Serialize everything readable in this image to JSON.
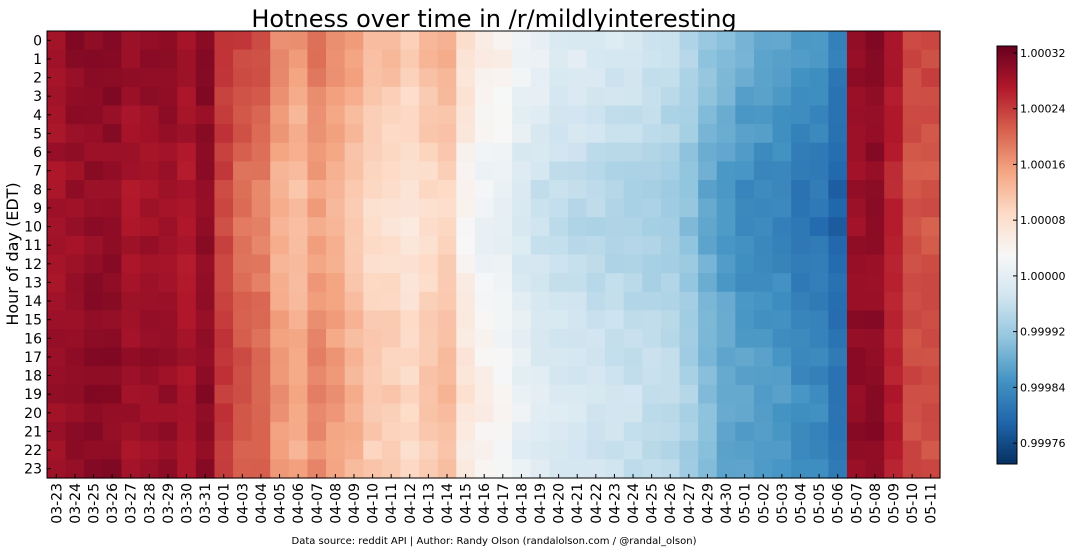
{
  "chart_data": {
    "type": "heatmap",
    "title": "Hotness over time in /r/mildlyinteresting",
    "ylabel": "Hour of day (EDT)",
    "xlabel": "",
    "caption": "Data source: reddit API | Author: Randy Olson (randalolson.com / @randal_olson)",
    "x": [
      "03-23",
      "03-24",
      "03-25",
      "03-26",
      "03-27",
      "03-28",
      "03-29",
      "03-30",
      "03-31",
      "04-01",
      "04-03",
      "04-04",
      "04-05",
      "04-06",
      "04-07",
      "04-08",
      "04-09",
      "04-10",
      "04-11",
      "04-12",
      "04-13",
      "04-14",
      "04-15",
      "04-16",
      "04-17",
      "04-18",
      "04-19",
      "04-20",
      "04-21",
      "04-22",
      "04-23",
      "04-24",
      "04-25",
      "04-26",
      "04-27",
      "04-29",
      "04-30",
      "05-01",
      "05-02",
      "05-03",
      "05-04",
      "05-05",
      "05-06",
      "05-07",
      "05-08",
      "05-09",
      "05-10",
      "05-11"
    ],
    "y": [
      "0",
      "1",
      "2",
      "3",
      "4",
      "5",
      "6",
      "7",
      "8",
      "9",
      "10",
      "11",
      "12",
      "13",
      "14",
      "15",
      "16",
      "17",
      "18",
      "19",
      "20",
      "21",
      "22",
      "23"
    ],
    "colorbar": {
      "min": 0.99973,
      "max": 1.00033,
      "ticks": [
        "0.99976",
        "0.99984",
        "0.99992",
        "1.00000",
        "1.00008",
        "1.00016",
        "1.00024",
        "1.00032"
      ],
      "colormap": "RdBu_r",
      "colors": [
        "#053061",
        "#2166ac",
        "#4393c3",
        "#92c5de",
        "#d1e5f0",
        "#f7f7f7",
        "#fddbc7",
        "#f4a582",
        "#d6604d",
        "#b2182b",
        "#67001f"
      ]
    },
    "column_base": [
      1.000285,
      1.000295,
      1.0003,
      1.0003,
      1.000285,
      1.00029,
      1.00029,
      1.00028,
      1.0003,
      1.00024,
      1.000215,
      1.0002,
      1.000155,
      1.00014,
      1.00017,
      1.00015,
      1.00013,
      1.000105,
      1.0001,
      1.000085,
      1.000105,
      1.000115,
      1.00006,
      1.000035,
      1.000025,
      1.0,
      0.999985,
      0.999975,
      0.99997,
      0.999965,
      0.99996,
      0.999955,
      0.99995,
      0.999945,
      0.999925,
      0.999895,
      0.999875,
      0.99986,
      0.999855,
      0.99985,
      0.999835,
      0.99983,
      0.999805,
      1.000295,
      1.0003,
      1.000265,
      1.000225,
      1.000225
    ],
    "values_note": "",
    "row_pattern": [
      2e-05,
      2e-05,
      1.5e-05,
      1e-05,
      0.0,
      0.0,
      -1e-05,
      -1.5e-05,
      -2e-05,
      -2e-05,
      -2.5e-05,
      -2e-05,
      -1.5e-05,
      -1e-05,
      -5e-06,
      0.0,
      0.0,
      5e-06,
      5e-06,
      1e-05,
      1e-05,
      5e-06,
      0.0,
      5e-06
    ]
  }
}
